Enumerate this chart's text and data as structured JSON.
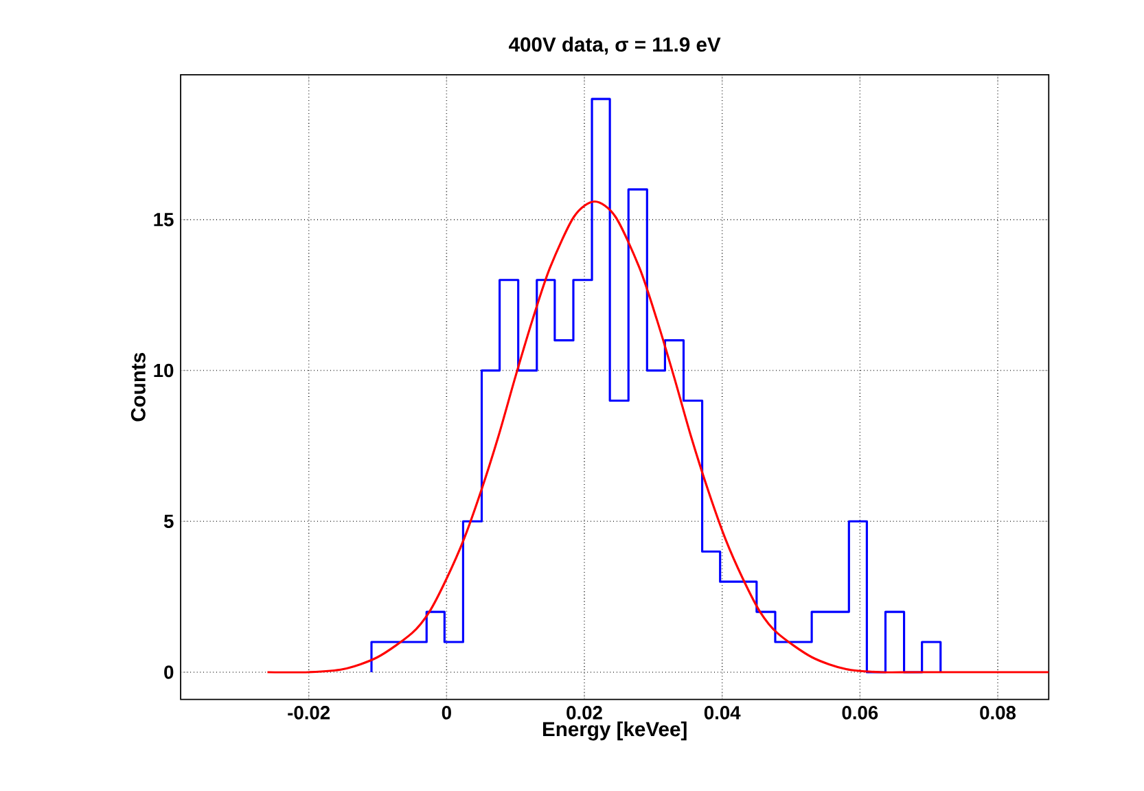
{
  "chart_data": {
    "type": "histogram",
    "title": "400V data, σ = 11.9 eV",
    "xlabel": "Energy [keVee]",
    "ylabel": "Counts",
    "xlim": [
      -0.0386,
      0.0874
    ],
    "ylim": [
      -0.9,
      19.8
    ],
    "xticks": [
      -0.02,
      0,
      0.02,
      0.04,
      0.06,
      0.08
    ],
    "yticks": [
      0,
      5,
      10,
      15
    ],
    "grid": true,
    "series": [
      {
        "color": "#0000ff",
        "bins": [
          -0.0109,
          -0.0082,
          -0.0056,
          -0.0029,
          -0.0003,
          0.0024,
          0.0051,
          0.0077,
          0.0104,
          0.0131,
          0.0157,
          0.0184,
          0.0211,
          0.0237,
          0.0264,
          0.0291,
          0.0317,
          0.0344,
          0.0371,
          0.0397,
          0.0424,
          0.045,
          0.0477,
          0.0504,
          0.053,
          0.0557,
          0.0584,
          0.061,
          0.0637,
          0.0664,
          0.069,
          0.0717
        ],
        "values": [
          1,
          1,
          1,
          2,
          1,
          5,
          10,
          13,
          10,
          13,
          11,
          13,
          19,
          9,
          16,
          10,
          11,
          9,
          4,
          3,
          3,
          2,
          1,
          1,
          2,
          2,
          5,
          0,
          2,
          0,
          1
        ]
      },
      {
        "type": "line",
        "color": "#ff0000",
        "x": [
          -0.026,
          -0.02,
          -0.015,
          -0.01,
          -0.005,
          -0.0025,
          0,
          0.0025,
          0.005,
          0.0075,
          0.01,
          0.0125,
          0.015,
          0.0185,
          0.0215,
          0.0245,
          0.028,
          0.0305,
          0.033,
          0.0355,
          0.038,
          0.0405,
          0.043,
          0.0455,
          0.048,
          0.053,
          0.058,
          0.063,
          0.069,
          0.0874
        ],
        "values": [
          0.0,
          0.0,
          0.1,
          0.5,
          1.3,
          2.0,
          3.1,
          4.4,
          6.0,
          7.8,
          9.8,
          11.7,
          13.4,
          15.1,
          15.6,
          15.1,
          13.4,
          11.7,
          9.8,
          7.8,
          6.0,
          4.4,
          3.1,
          2.0,
          1.3,
          0.5,
          0.1,
          0.0,
          0.0,
          0.0
        ]
      }
    ]
  }
}
